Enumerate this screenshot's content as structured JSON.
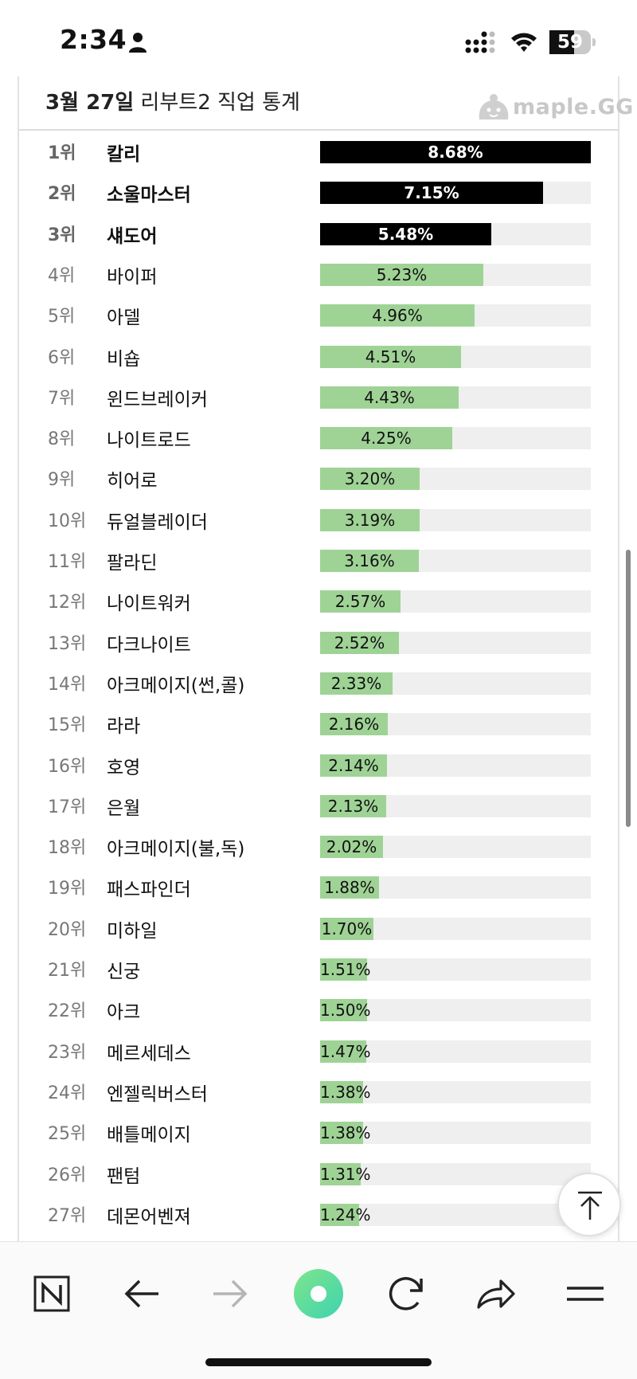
{
  "status_bar": {
    "time": "2:34",
    "battery": "59",
    "battery_level": 0.59
  },
  "header": {
    "title_bold": "3월 27일",
    "title_rest": " 리부트2 직업 통계",
    "brand": "maple.GG"
  },
  "stats": [
    {
      "rank": "1위",
      "job": "칼리",
      "pct": "8.68%",
      "value": 8.68
    },
    {
      "rank": "2위",
      "job": "소울마스터",
      "pct": "7.15%",
      "value": 7.15
    },
    {
      "rank": "3위",
      "job": "섀도어",
      "pct": "5.48%",
      "value": 5.48
    },
    {
      "rank": "4위",
      "job": "바이퍼",
      "pct": "5.23%",
      "value": 5.23
    },
    {
      "rank": "5위",
      "job": "아델",
      "pct": "4.96%",
      "value": 4.96
    },
    {
      "rank": "6위",
      "job": "비숍",
      "pct": "4.51%",
      "value": 4.51
    },
    {
      "rank": "7위",
      "job": "윈드브레이커",
      "pct": "4.43%",
      "value": 4.43
    },
    {
      "rank": "8위",
      "job": "나이트로드",
      "pct": "4.25%",
      "value": 4.25
    },
    {
      "rank": "9위",
      "job": "히어로",
      "pct": "3.20%",
      "value": 3.2
    },
    {
      "rank": "10위",
      "job": "듀얼블레이더",
      "pct": "3.19%",
      "value": 3.19
    },
    {
      "rank": "11위",
      "job": "팔라딘",
      "pct": "3.16%",
      "value": 3.16
    },
    {
      "rank": "12위",
      "job": "나이트워커",
      "pct": "2.57%",
      "value": 2.57
    },
    {
      "rank": "13위",
      "job": "다크나이트",
      "pct": "2.52%",
      "value": 2.52
    },
    {
      "rank": "14위",
      "job": "아크메이지(썬,콜)",
      "pct": "2.33%",
      "value": 2.33
    },
    {
      "rank": "15위",
      "job": "라라",
      "pct": "2.16%",
      "value": 2.16
    },
    {
      "rank": "16위",
      "job": "호영",
      "pct": "2.14%",
      "value": 2.14
    },
    {
      "rank": "17위",
      "job": "은월",
      "pct": "2.13%",
      "value": 2.13
    },
    {
      "rank": "18위",
      "job": "아크메이지(불,독)",
      "pct": "2.02%",
      "value": 2.02
    },
    {
      "rank": "19위",
      "job": "패스파인더",
      "pct": "1.88%",
      "value": 1.88
    },
    {
      "rank": "20위",
      "job": "미하일",
      "pct": "1.70%",
      "value": 1.7
    },
    {
      "rank": "21위",
      "job": "신궁",
      "pct": "1.51%",
      "value": 1.51
    },
    {
      "rank": "22위",
      "job": "아크",
      "pct": "1.50%",
      "value": 1.5
    },
    {
      "rank": "23위",
      "job": "메르세데스",
      "pct": "1.47%",
      "value": 1.47
    },
    {
      "rank": "24위",
      "job": "엔젤릭버스터",
      "pct": "1.38%",
      "value": 1.38
    },
    {
      "rank": "25위",
      "job": "배틀메이지",
      "pct": "1.38%",
      "value": 1.38
    },
    {
      "rank": "26위",
      "job": "팬텀",
      "pct": "1.31%",
      "value": 1.31
    },
    {
      "rank": "27위",
      "job": "데몬어벤져",
      "pct": "1.24%",
      "value": 1.24
    }
  ],
  "colors": {
    "top_bar": "#000000",
    "bar": "#9fd396",
    "track": "#efefef",
    "brand_gray": "#c8c8c8"
  },
  "toolbar": {
    "items": [
      "naver-home-icon",
      "back-icon",
      "forward-icon",
      "green-dot-icon",
      "reload-icon",
      "share-icon",
      "menu-icon"
    ]
  }
}
